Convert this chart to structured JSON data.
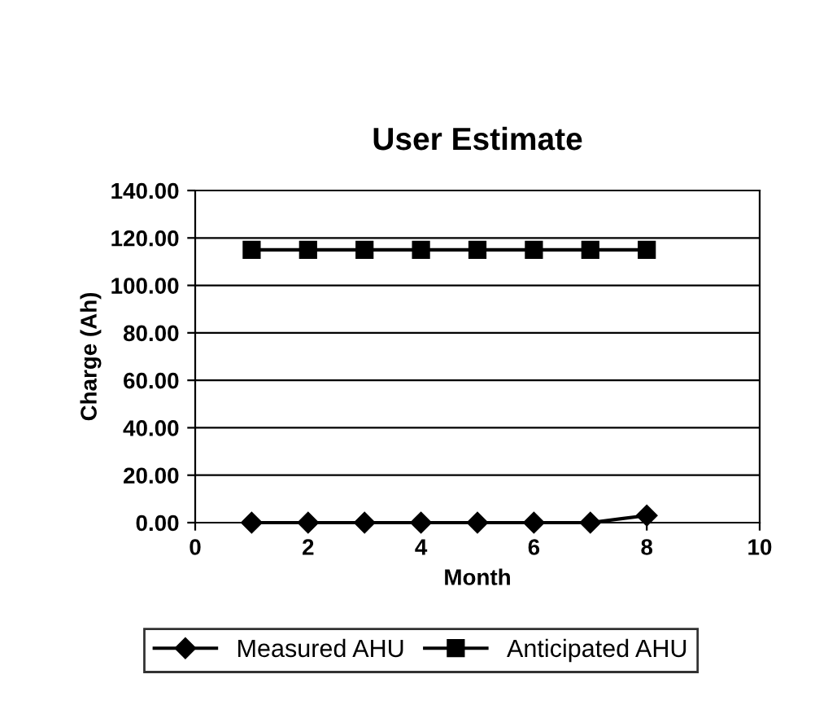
{
  "chart_data": {
    "type": "line",
    "title": "User Estimate",
    "xlabel": "Month",
    "ylabel": "Charge (Ah)",
    "x": [
      1,
      2,
      3,
      4,
      5,
      6,
      7,
      8
    ],
    "series": [
      {
        "name": "Measured AHU",
        "color": "#000000",
        "marker": "diamond",
        "values": [
          0,
          0,
          0,
          0,
          0,
          0,
          0,
          3
        ]
      },
      {
        "name": "Anticipated AHU",
        "color": "#000000",
        "marker": "square",
        "values": [
          115,
          115,
          115,
          115,
          115,
          115,
          115,
          115
        ]
      }
    ],
    "xlim": [
      0,
      10
    ],
    "xticks": [
      0,
      2,
      4,
      6,
      8,
      10
    ],
    "ylim": [
      0,
      140
    ],
    "yticks": [
      {
        "value": 0,
        "label": "0.00"
      },
      {
        "value": 20,
        "label": "20.00"
      },
      {
        "value": 40,
        "label": "40.00"
      },
      {
        "value": 60,
        "label": "60.00"
      },
      {
        "value": 80,
        "label": "80.00"
      },
      {
        "value": 100,
        "label": "100.00"
      },
      {
        "value": 120,
        "label": "120.00"
      },
      {
        "value": 140,
        "label": "140.00"
      }
    ],
    "grid": "y",
    "legend": "bottom",
    "line_style": "solid"
  }
}
